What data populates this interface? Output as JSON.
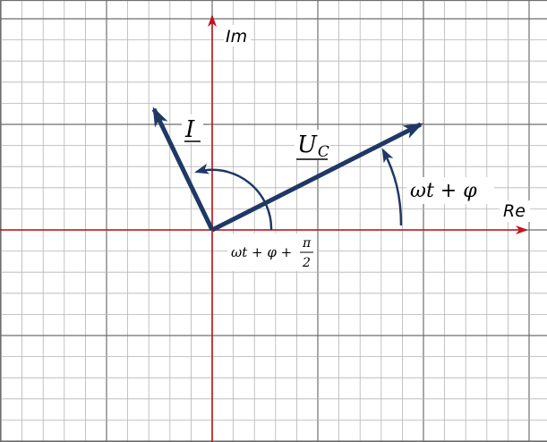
{
  "axes": {
    "x_label": "Re",
    "y_label": "Im",
    "axis_color": "#c0141c"
  },
  "phasors": {
    "color": "#1f3864",
    "current": {
      "symbol": "I"
    },
    "voltage": {
      "symbol": "U",
      "subscript": "C"
    }
  },
  "angles": {
    "voltage_angle": "ωt + φ",
    "current_angle": {
      "text": "ωt + φ +",
      "numerator": "π",
      "denominator": "2"
    }
  },
  "grid": {
    "minor_color": "#b4b4b4",
    "major_color": "#6e6e6e"
  }
}
